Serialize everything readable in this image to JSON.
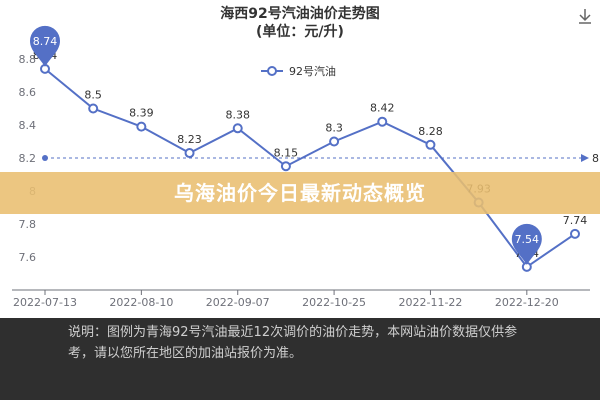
{
  "banner": "乌海油价今日最新动态概览",
  "note": "说明：图例为青海92号汽油最近12次调价的油价走势，本网站油价数据仅供参考，请以您所在地区的加油站报价为准。",
  "chart_data": {
    "type": "line",
    "title": "海西92号汽油油价走势图",
    "subtitle": "(单位：元/升)",
    "categories": [
      "2022-07-13",
      null,
      "2022-08-10",
      null,
      "2022-09-07",
      null,
      "2022-10-25",
      null,
      "2022-11-22",
      null,
      "2022-12-20",
      null
    ],
    "series": [
      {
        "name": "92号汽油",
        "color": "#5470c6",
        "values": [
          8.74,
          8.5,
          8.39,
          8.23,
          8.38,
          8.15,
          8.3,
          8.42,
          8.28,
          7.93,
          7.54,
          7.74
        ]
      }
    ],
    "ylim": [
      7.4,
      8.8
    ],
    "yticks": [
      7.6,
      7.8,
      8,
      8.2,
      8.4,
      8.6,
      8.8
    ],
    "grid": false,
    "mark_line": 8.2
  }
}
